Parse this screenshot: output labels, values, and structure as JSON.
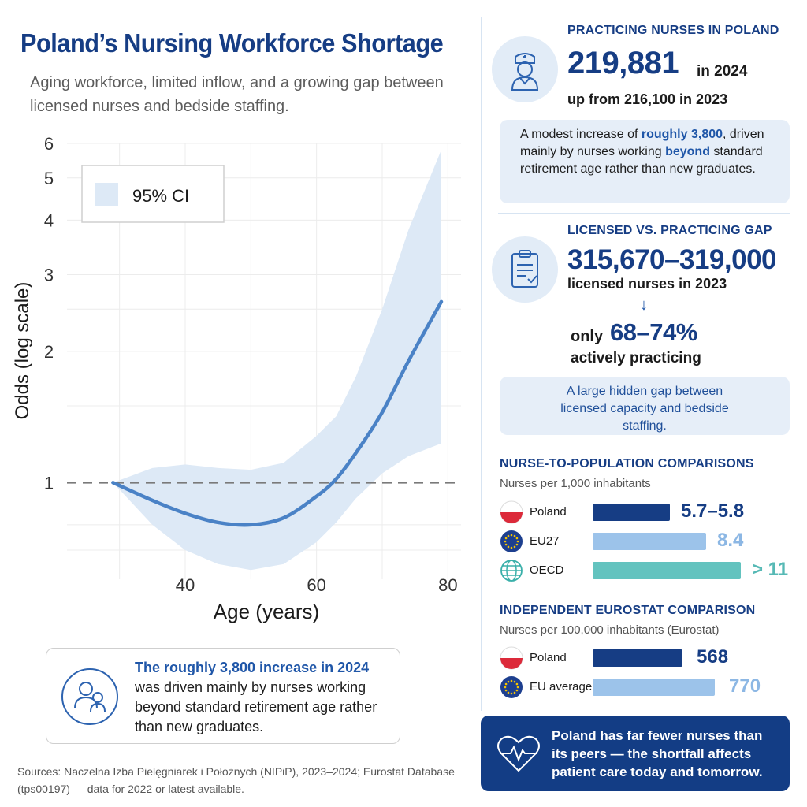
{
  "header": {
    "title": "Poland’s Nursing Workforce Shortage",
    "subtitle": "Aging workforce, limited inflow, and a growing gap between licensed nurses and bedside staffing."
  },
  "chart_data": {
    "type": "line",
    "title": "",
    "xlabel": "Age (years)",
    "ylabel": "Odds (log scale)",
    "y_scale": "log",
    "xlim": [
      22,
      82
    ],
    "ylim": [
      0.6,
      6
    ],
    "x_ticks": [
      40,
      60,
      80
    ],
    "y_ticks": [
      1,
      2,
      3,
      4,
      5,
      6
    ],
    "grid": true,
    "reference_line": 1,
    "legend": {
      "position": "top-left",
      "entries": [
        "95% CI"
      ]
    },
    "series": [
      {
        "name": "",
        "x": [
          29,
          35,
          40,
          45,
          50,
          55,
          60,
          63,
          66,
          70,
          74,
          79
        ],
        "y": [
          1.0,
          0.91,
          0.85,
          0.81,
          0.8,
          0.83,
          0.93,
          1.02,
          1.17,
          1.45,
          1.9,
          2.6
        ]
      }
    ],
    "ci_band": {
      "name": "95% CI",
      "x": [
        29,
        35,
        40,
        45,
        50,
        55,
        60,
        63,
        66,
        70,
        74,
        79
      ],
      "lower": [
        1.0,
        0.8,
        0.7,
        0.65,
        0.63,
        0.65,
        0.73,
        0.81,
        0.92,
        1.05,
        1.15,
        1.23
      ],
      "upper": [
        1.0,
        1.08,
        1.1,
        1.08,
        1.07,
        1.11,
        1.28,
        1.42,
        1.75,
        2.5,
        3.8,
        5.8
      ]
    },
    "colors": {
      "line": "#4a82c6",
      "band": "#dde9f6",
      "reference": "#7a7a7a"
    }
  },
  "legend_label": "95% CI",
  "callout": {
    "highlight": "The roughly 3,800 increase in 2024",
    "text": "was driven mainly by nurses working beyond standard retirement age rather than new graduates.",
    "icon": "people-icon"
  },
  "sources": "Sources: Naczelna Izba Pielęgniarek i Położnych (NIPiP), 2023–2024; Eurostat Database (tps00197) — data for 2022 or latest available.",
  "practicing": {
    "heading": "PRACTICING NURSES IN POLAND",
    "value": "219,881",
    "year": "in 2024",
    "prev": "up from 216,100 in 2023",
    "icon": "nurse-icon",
    "note_1": "A modest increase of ",
    "note_hl1": "roughly 3,800",
    "note_2": ", driven mainly by nurses working ",
    "note_hl2": "beyond",
    "note_3": " standard retirement age rather than new graduates."
  },
  "gap": {
    "heading": "LICENSED VS. PRACTICING GAP",
    "value": "315,670–319,000",
    "sub": "licensed nurses in 2023",
    "arrow": "↓",
    "only": "only",
    "pct": "68–74%",
    "active": "actively practicing",
    "icon": "clipboard-icon",
    "note": "A large hidden gap between licensed capacity and bedside staffing."
  },
  "comparisons": {
    "heading": "NURSE-TO-POPULATION COMPARISONS",
    "sub": "Nurses per 1,000 inhabitants",
    "rows": [
      {
        "country": "Poland",
        "value": "5.7–5.8",
        "num": 5.75,
        "color": "#163d84",
        "valcolor": "#163d84"
      },
      {
        "country": "EU27",
        "value": "8.4",
        "num": 8.4,
        "color": "#9cc3ea",
        "valcolor": "#8cb7e4"
      },
      {
        "country": "OECD",
        "value": "> 11",
        "num": 11,
        "color": "#63c3bf",
        "valcolor": "#56b9b5"
      }
    ]
  },
  "eurostat": {
    "heading": "INDEPENDENT EUROSTAT COMPARISON",
    "sub": "Nurses per 100,000 inhabitants (Eurostat)",
    "rows": [
      {
        "country": "Poland",
        "value": "568",
        "num": 568,
        "color": "#163d84",
        "valcolor": "#163d84"
      },
      {
        "country": "EU average",
        "value": "770",
        "num": 770,
        "color": "#9cc3ea",
        "valcolor": "#8cb7e4"
      }
    ]
  },
  "footer": {
    "text": "Poland has far fewer nurses than its peers — the shortfall affects patient care today and tomorrow.",
    "icon": "heartbeat-icon"
  }
}
